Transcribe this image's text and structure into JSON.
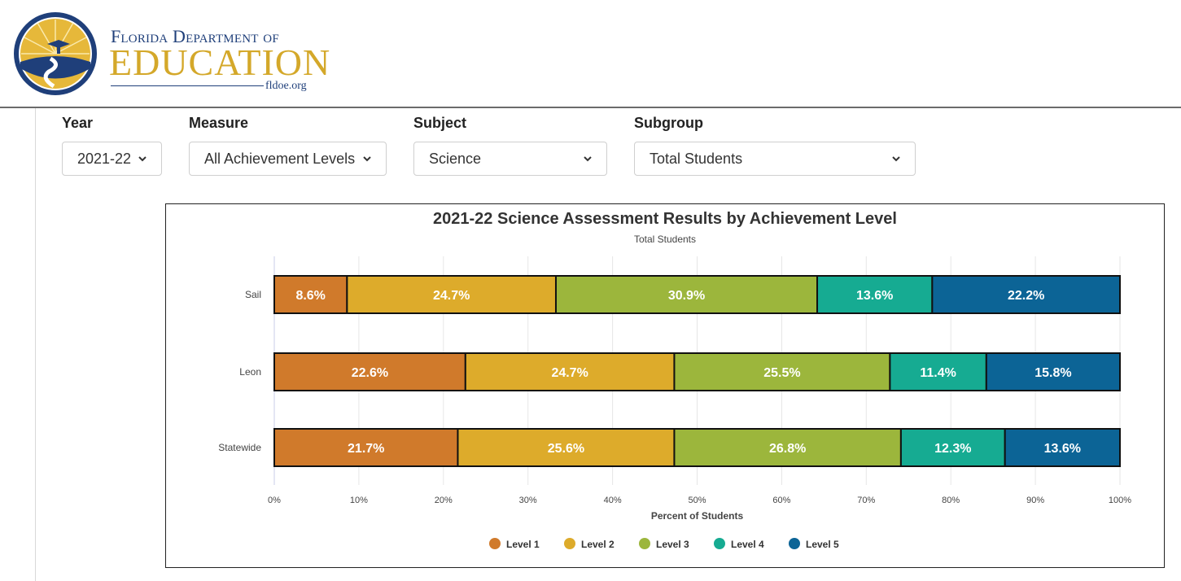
{
  "header": {
    "org_line1": "Florida Department of",
    "org_line2": "EDUCATION",
    "org_url": "fldoe.org"
  },
  "filters": [
    {
      "label": "Year",
      "value": "2021-22"
    },
    {
      "label": "Measure",
      "value": "All Achievement Levels"
    },
    {
      "label": "Subject",
      "value": "Science"
    },
    {
      "label": "Subgroup",
      "value": "Total Students"
    }
  ],
  "chart_data": {
    "type": "bar",
    "orientation": "horizontal",
    "stacked": true,
    "title": "2021-22 Science Assessment Results by Achievement Level",
    "subtitle": "Total Students",
    "xlabel": "Percent of Students",
    "ylabel": "",
    "xlim": [
      0,
      100
    ],
    "x_ticks": [
      "0%",
      "10%",
      "20%",
      "30%",
      "40%",
      "50%",
      "60%",
      "70%",
      "80%",
      "90%",
      "100%"
    ],
    "categories": [
      "Sail",
      "Leon",
      "Statewide"
    ],
    "series": [
      {
        "name": "Level 1",
        "color": "#d07a2b",
        "values": [
          8.6,
          22.6,
          21.7
        ]
      },
      {
        "name": "Level 2",
        "color": "#ddab2b",
        "values": [
          24.7,
          24.7,
          25.6
        ]
      },
      {
        "name": "Level 3",
        "color": "#9cb63c",
        "values": [
          30.9,
          25.5,
          26.8
        ]
      },
      {
        "name": "Level 4",
        "color": "#16ab92",
        "values": [
          13.6,
          11.4,
          12.3
        ]
      },
      {
        "name": "Level 5",
        "color": "#0c6496",
        "values": [
          22.2,
          15.8,
          13.6
        ]
      }
    ],
    "data_labels": [
      [
        "8.6%",
        "24.7%",
        "30.9%",
        "13.6%",
        "22.2%"
      ],
      [
        "22.6%",
        "24.7%",
        "25.5%",
        "11.4%",
        "15.8%"
      ],
      [
        "21.7%",
        "25.6%",
        "26.8%",
        "12.3%",
        "13.6%"
      ]
    ],
    "grid": true,
    "legend_position": "bottom"
  }
}
